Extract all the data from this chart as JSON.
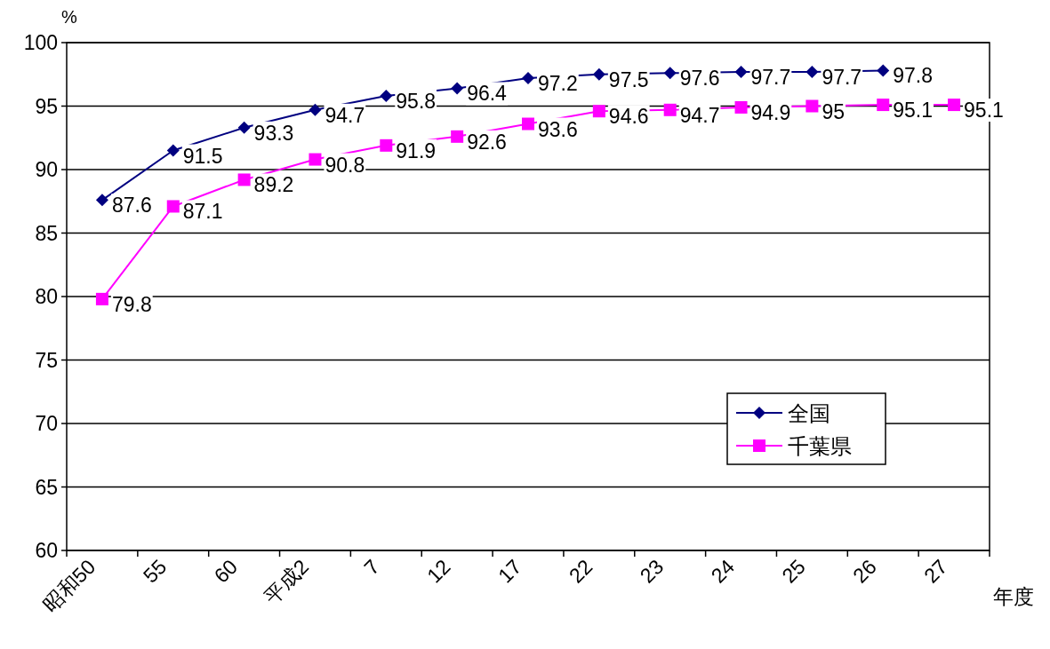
{
  "chart_data": {
    "type": "line",
    "ylabel": "%",
    "xlabel": "年度",
    "categories": [
      "昭和50",
      "55",
      "60",
      "平成2",
      "7",
      "12",
      "17",
      "22",
      "23",
      "24",
      "25",
      "26",
      "27"
    ],
    "series": [
      {
        "name": "全国",
        "color": "#000080",
        "marker": "diamond",
        "values": [
          87.6,
          91.5,
          93.3,
          94.7,
          95.8,
          96.4,
          97.2,
          97.5,
          97.6,
          97.7,
          97.7,
          97.8,
          null
        ]
      },
      {
        "name": "千葉県",
        "color": "#ff00ff",
        "marker": "square",
        "values": [
          79.8,
          87.1,
          89.2,
          90.8,
          91.9,
          92.6,
          93.6,
          94.6,
          94.7,
          94.9,
          95,
          95.1,
          95.1
        ]
      }
    ],
    "ylim": [
      60,
      100
    ],
    "yticks": [
      60,
      65,
      70,
      75,
      80,
      85,
      90,
      95,
      100
    ],
    "grid": "y",
    "legend": "bottom right",
    "data_labels": true,
    "line_style": "solid"
  }
}
